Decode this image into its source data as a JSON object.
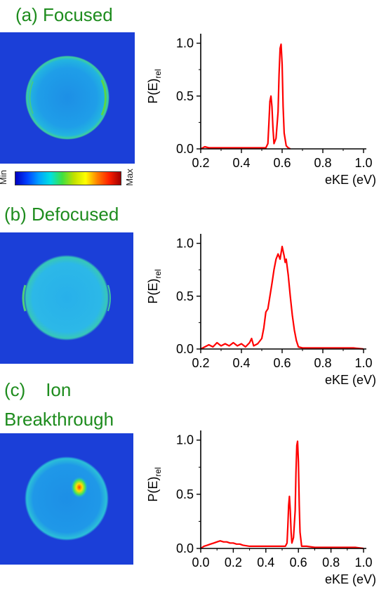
{
  "panels": [
    {
      "title": "(a) Focused"
    },
    {
      "title": "(b) Defocused"
    },
    {
      "title_line1": "(c)    Ion",
      "title_line2": "Breakthrough"
    }
  ],
  "colorbar": {
    "min_label": "Min",
    "max_label": "Max"
  },
  "chart_data": [
    {
      "type": "line",
      "xlabel": "eKE (eV)",
      "ylabel": "P(E)",
      "ylabel_sub": "rel",
      "xlim": [
        0.2,
        1.0
      ],
      "ylim": [
        0,
        1.05
      ],
      "xticks": [
        "0.2",
        "0.4",
        "0.6",
        "0.8",
        "1.0"
      ],
      "yticks": [
        "0.0",
        "0.5",
        "1.0"
      ],
      "series": [
        {
          "color": "#ff0000",
          "x": [
            0.2,
            0.22,
            0.24,
            0.26,
            0.3,
            0.35,
            0.4,
            0.45,
            0.5,
            0.52,
            0.53,
            0.535,
            0.54,
            0.545,
            0.55,
            0.555,
            0.56,
            0.57,
            0.58,
            0.585,
            0.59,
            0.595,
            0.6,
            0.605,
            0.61,
            0.62,
            0.63,
            0.64
          ],
          "y": [
            0.0,
            0.02,
            0.01,
            0.01,
            0.01,
            0.01,
            0.01,
            0.01,
            0.01,
            0.01,
            0.05,
            0.25,
            0.45,
            0.5,
            0.4,
            0.2,
            0.05,
            0.1,
            0.35,
            0.7,
            0.95,
            0.99,
            0.8,
            0.4,
            0.15,
            0.03,
            0.01,
            0.0
          ]
        }
      ]
    },
    {
      "type": "line",
      "xlabel": "eKE (eV)",
      "ylabel": "P(E)",
      "ylabel_sub": "rel",
      "xlim": [
        0.2,
        1.0
      ],
      "ylim": [
        0,
        1.05
      ],
      "xticks": [
        "0.2",
        "0.4",
        "0.6",
        "0.8",
        "1.0"
      ],
      "yticks": [
        "0.0",
        "0.5",
        "1.0"
      ],
      "series": [
        {
          "color": "#ff0000",
          "x": [
            0.2,
            0.22,
            0.24,
            0.26,
            0.28,
            0.3,
            0.32,
            0.34,
            0.36,
            0.38,
            0.4,
            0.42,
            0.44,
            0.45,
            0.46,
            0.48,
            0.5,
            0.51,
            0.52,
            0.53,
            0.54,
            0.55,
            0.56,
            0.57,
            0.58,
            0.59,
            0.6,
            0.61,
            0.615,
            0.62,
            0.63,
            0.64,
            0.65,
            0.66,
            0.67,
            0.68,
            0.7,
            0.75,
            0.8,
            0.85,
            0.9,
            0.95,
            1.0
          ],
          "y": [
            0.0,
            0.02,
            0.04,
            0.02,
            0.06,
            0.03,
            0.05,
            0.03,
            0.06,
            0.03,
            0.05,
            0.02,
            0.06,
            0.1,
            0.03,
            0.05,
            0.1,
            0.2,
            0.35,
            0.38,
            0.5,
            0.62,
            0.75,
            0.85,
            0.9,
            0.85,
            0.97,
            0.88,
            0.82,
            0.85,
            0.7,
            0.5,
            0.32,
            0.18,
            0.08,
            0.02,
            0.01,
            0.01,
            0.01,
            0.01,
            0.01,
            0.01,
            0.0
          ]
        }
      ]
    },
    {
      "type": "line",
      "xlabel": "eKE (eV)",
      "ylabel": "P(E)",
      "ylabel_sub": "rel",
      "xlim": [
        0.0,
        1.0
      ],
      "ylim": [
        0,
        1.05
      ],
      "xticks": [
        "0.0",
        "0.2",
        "0.4",
        "0.6",
        "0.8",
        "1.0"
      ],
      "yticks": [
        "0.0",
        "0.5",
        "1.0"
      ],
      "series": [
        {
          "color": "#ff0000",
          "x": [
            0.0,
            0.02,
            0.04,
            0.06,
            0.08,
            0.1,
            0.12,
            0.14,
            0.16,
            0.18,
            0.2,
            0.22,
            0.24,
            0.26,
            0.3,
            0.35,
            0.4,
            0.45,
            0.5,
            0.52,
            0.53,
            0.535,
            0.54,
            0.545,
            0.55,
            0.555,
            0.56,
            0.57,
            0.58,
            0.585,
            0.59,
            0.595,
            0.6,
            0.605,
            0.61,
            0.62,
            0.65,
            0.7,
            0.75,
            0.8,
            0.85,
            0.9,
            0.95,
            1.0
          ],
          "y": [
            0.0,
            0.02,
            0.03,
            0.04,
            0.05,
            0.06,
            0.07,
            0.06,
            0.06,
            0.05,
            0.05,
            0.04,
            0.04,
            0.03,
            0.02,
            0.02,
            0.02,
            0.02,
            0.02,
            0.02,
            0.05,
            0.2,
            0.4,
            0.48,
            0.35,
            0.15,
            0.05,
            0.1,
            0.35,
            0.7,
            0.95,
            0.99,
            0.8,
            0.4,
            0.15,
            0.02,
            0.02,
            0.01,
            0.01,
            0.01,
            0.01,
            0.01,
            0.01,
            0.0
          ]
        }
      ]
    }
  ]
}
